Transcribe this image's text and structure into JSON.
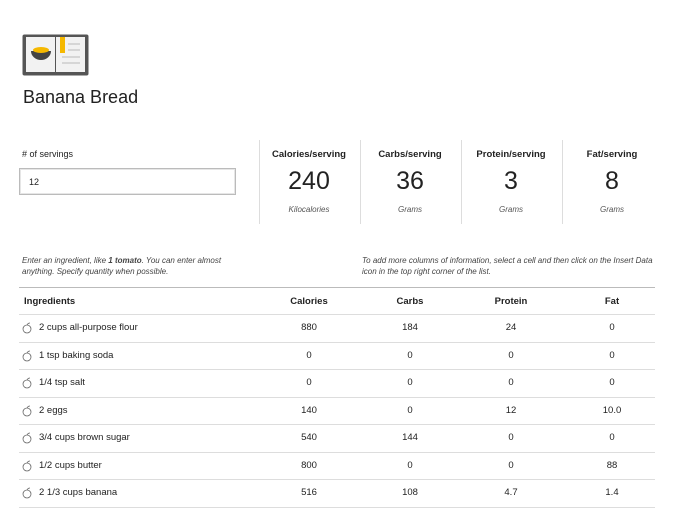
{
  "header": {
    "title": "Banana Bread"
  },
  "servings": {
    "label": "# of servings",
    "value": "12"
  },
  "summary": [
    {
      "label": "Calories/serving",
      "value": "240",
      "unit": "Kilocalories"
    },
    {
      "label": "Carbs/serving",
      "value": "36",
      "unit": "Grams"
    },
    {
      "label": "Protein/serving",
      "value": "3",
      "unit": "Grams"
    },
    {
      "label": "Fat/serving",
      "value": "8",
      "unit": "Grams"
    }
  ],
  "notes": {
    "left": [
      "Enter an ingredient, like ",
      "1 tomato",
      ". You can enter almost anything. Specify quantity when possible."
    ],
    "right": "To add more columns of information, select a cell and then click on the Insert Data icon in the top right corner of the list."
  },
  "table": {
    "headers": [
      "Ingredients",
      "Calories",
      "Carbs",
      "Protein",
      "Fat"
    ],
    "rows": [
      [
        "2 cups all-purpose flour",
        "880",
        "184",
        "24",
        "0"
      ],
      [
        "1 tsp baking soda",
        "0",
        "0",
        "0",
        "0"
      ],
      [
        "1/4 tsp salt",
        "0",
        "0",
        "0",
        "0"
      ],
      [
        "2 eggs",
        "140",
        "0",
        "12",
        "10.0"
      ],
      [
        "3/4 cups brown sugar",
        "540",
        "144",
        "0",
        "0"
      ],
      [
        "1/2 cups butter",
        "800",
        "0",
        "0",
        "88"
      ],
      [
        "2 1/3 cups banana",
        "516",
        "108",
        "4.7",
        "1.4"
      ]
    ]
  }
}
